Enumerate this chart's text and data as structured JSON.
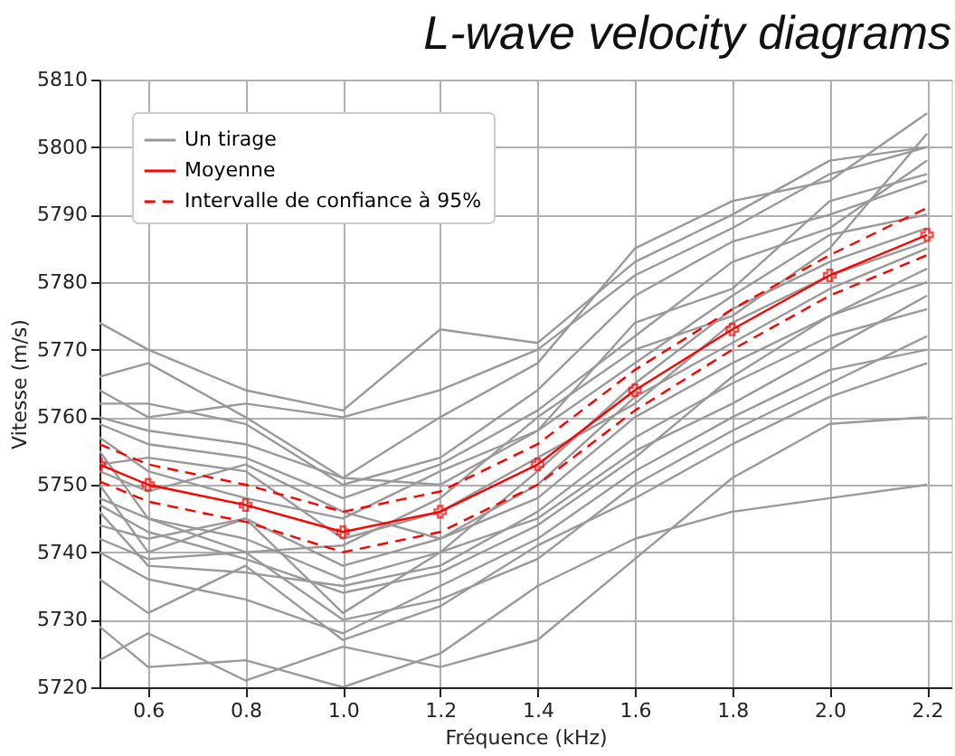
{
  "chart_data": {
    "type": "line",
    "title": "L-wave velocity diagrams",
    "xlabel": "Fréquence (kHz)",
    "ylabel": "Vitesse (m/s)",
    "x": [
      0.5,
      0.6,
      0.8,
      1.0,
      1.2,
      1.4,
      1.6,
      1.8,
      2.0,
      2.2
    ],
    "xlim": [
      0.5,
      2.25
    ],
    "xticks": [
      0.6,
      0.8,
      {
        "value": 1,
        "label": "1.0"
      },
      1.2,
      1.4,
      1.6,
      1.8,
      {
        "value": 2,
        "label": "2.0"
      },
      2.2
    ],
    "ylim": [
      5720,
      5810
    ],
    "yticks": [
      5720,
      5730,
      5740,
      5750,
      5760,
      5770,
      5780,
      5790,
      5800,
      5810
    ],
    "grid": true,
    "legend": "top left",
    "series": [
      {
        "name": "Un tirage",
        "color": "#999999",
        "values": [
          5774,
          5770,
          5764,
          5761,
          5773,
          5771,
          5783,
          5790,
          5798,
          5800
        ]
      },
      {
        "color": "#999999",
        "values": [
          5766,
          5768,
          5760,
          5751,
          5760,
          5768,
          5785,
          5792,
          5795,
          5805
        ]
      },
      {
        "color": "#999999",
        "values": [
          5762,
          5762,
          5759,
          5750,
          5754,
          5764,
          5778,
          5786,
          5790,
          5795
        ]
      },
      {
        "color": "#999999",
        "values": [
          5759,
          5756,
          5754,
          5748,
          5753,
          5761,
          5772,
          5783,
          5788,
          5798
        ]
      },
      {
        "color": "#999999",
        "values": [
          5757,
          5752,
          5748,
          5745,
          5752,
          5758,
          5768,
          5778,
          5787,
          5790
        ]
      },
      {
        "color": "#999999",
        "values": [
          5755,
          5745,
          5740,
          5741,
          5748,
          5760,
          5770,
          5775,
          5785,
          5802
        ]
      },
      {
        "color": "#999999",
        "values": [
          5752,
          5749,
          5753,
          5746,
          5742,
          5750,
          5763,
          5771,
          5779,
          5785
        ]
      },
      {
        "color": "#999999",
        "values": [
          5750,
          5740,
          5745,
          5738,
          5742,
          5748,
          5760,
          5768,
          5775,
          5782
        ]
      },
      {
        "color": "#999999",
        "values": [
          5748,
          5745,
          5742,
          5736,
          5740,
          5752,
          5765,
          5776,
          5783,
          5788
        ]
      },
      {
        "color": "#999999",
        "values": [
          5746,
          5738,
          5737,
          5735,
          5738,
          5746,
          5757,
          5765,
          5772,
          5776
        ]
      },
      {
        "color": "#999999",
        "values": [
          5744,
          5742,
          5745,
          5731,
          5740,
          5745,
          5755,
          5762,
          5770,
          5778
        ]
      },
      {
        "color": "#999999",
        "values": [
          5740,
          5736,
          5733,
          5728,
          5735,
          5742,
          5752,
          5760,
          5767,
          5770
        ]
      },
      {
        "color": "#999999",
        "values": [
          5736,
          5731,
          5738,
          5727,
          5732,
          5741,
          5748,
          5756,
          5763,
          5768
        ]
      },
      {
        "color": "#999999",
        "values": [
          5729,
          5723,
          5724,
          5720,
          5725,
          5735,
          5742,
          5746,
          5748,
          5750
        ]
      },
      {
        "color": "#999999",
        "values": [
          5724,
          5728,
          5721,
          5726,
          5723,
          5727,
          5739,
          5751,
          5759,
          5760
        ]
      },
      {
        "color": "#999999",
        "values": [
          5764,
          5760,
          5762,
          5760,
          5764,
          5770,
          5781,
          5788,
          5796,
          5800
        ]
      },
      {
        "color": "#999999",
        "values": [
          5760,
          5758,
          5756,
          5751,
          5750,
          5758,
          5774,
          5779,
          5792,
          5796
        ]
      },
      {
        "color": "#999999",
        "values": [
          5753,
          5754,
          5752,
          5742,
          5746,
          5754,
          5762,
          5774,
          5781,
          5786
        ]
      },
      {
        "color": "#999999",
        "values": [
          5747,
          5743,
          5739,
          5734,
          5737,
          5744,
          5754,
          5766,
          5775,
          5780
        ]
      },
      {
        "color": "#999999",
        "values": [
          5742,
          5739,
          5740,
          5730,
          5733,
          5739,
          5750,
          5758,
          5765,
          5772
        ]
      },
      {
        "name": "Moyenne",
        "color": "#ff0000",
        "marker": "cross",
        "line_style": "solid",
        "values": [
          5753,
          5750,
          5747,
          5743,
          5746,
          5753,
          5764,
          5773,
          5781,
          5787
        ]
      },
      {
        "name": "Intervalle de confiance à 95%",
        "color": "#ff0000",
        "line_style": "dashed",
        "values": [
          5756,
          5753,
          5750,
          5746,
          5749,
          5756,
          5767,
          5776,
          5784,
          5791
        ]
      },
      {
        "color": "#ff0000",
        "line_style": "dashed",
        "values": [
          5750.5,
          5747.5,
          5744.5,
          5740,
          5743,
          5750,
          5761,
          5770,
          5778,
          5784
        ]
      }
    ]
  }
}
